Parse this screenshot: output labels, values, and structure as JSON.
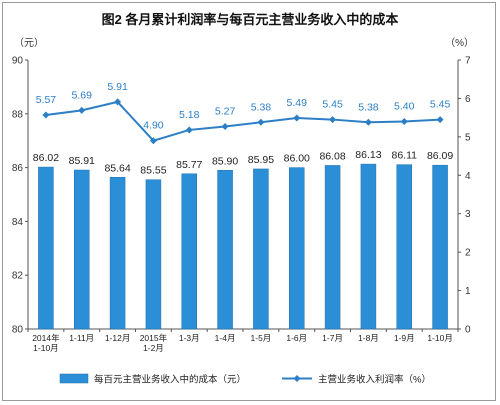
{
  "chart_data": {
    "type": "bar+line",
    "title": "图2  各月累计利润率与每百元主营业务收入中的成本",
    "categories": [
      [
        "2014年",
        "1-10月"
      ],
      [
        "1-11月"
      ],
      [
        "1-12月"
      ],
      [
        "2015年",
        "1-2月"
      ],
      [
        "1-3月"
      ],
      [
        "1-4月"
      ],
      [
        "1-5月"
      ],
      [
        "1-6月"
      ],
      [
        "1-7月"
      ],
      [
        "1-8月"
      ],
      [
        "1-9月"
      ],
      [
        "1-10月"
      ]
    ],
    "left_axis": {
      "unit": "（元）",
      "min": 80,
      "max": 90,
      "ticks": [
        80,
        82,
        84,
        86,
        88,
        90
      ]
    },
    "right_axis": {
      "unit": "（%）",
      "min": 0,
      "max": 7,
      "ticks": [
        0,
        1,
        2,
        3,
        4,
        5,
        6,
        7
      ]
    },
    "series": [
      {
        "name": "每百元主营业务收入中的成本（元）",
        "kind": "bar",
        "axis": "left",
        "color": "#2a8fd6",
        "values": [
          86.02,
          85.91,
          85.64,
          85.55,
          85.77,
          85.9,
          85.95,
          86.0,
          86.08,
          86.13,
          86.11,
          86.09
        ],
        "labels": [
          "86.02",
          "85.91",
          "85.64",
          "85.55",
          "85.77",
          "85.90",
          "85.95",
          "86.00",
          "86.08",
          "86.13",
          "86.11",
          "86.09"
        ]
      },
      {
        "name": "主营业务收入利润率（%）",
        "kind": "line",
        "axis": "right",
        "color": "#2c7fc6",
        "values": [
          5.57,
          5.69,
          5.91,
          4.9,
          5.18,
          5.27,
          5.38,
          5.49,
          5.45,
          5.38,
          5.4,
          5.45
        ],
        "labels": [
          "5.57",
          "5.69",
          "5.91",
          "4.90",
          "5.18",
          "5.27",
          "5.38",
          "5.49",
          "5.45",
          "5.38",
          "5.40",
          "5.45"
        ]
      }
    ],
    "legend_position": "bottom",
    "grid": false
  }
}
